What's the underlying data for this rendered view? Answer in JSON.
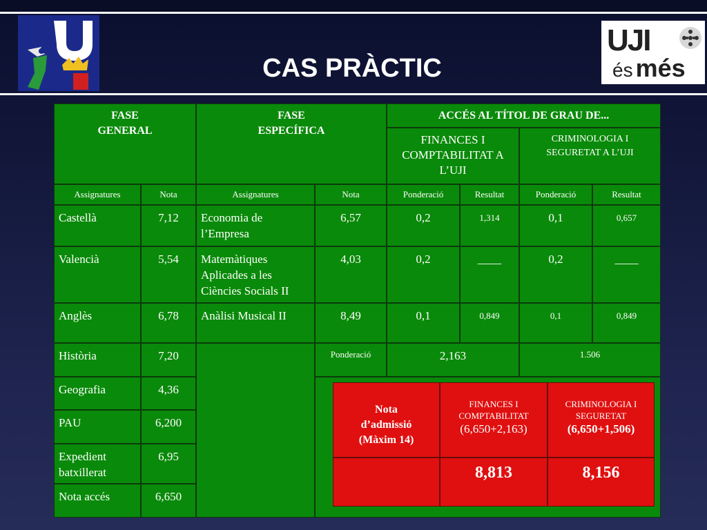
{
  "title": "CAS PRÀCTIC",
  "logo_right": {
    "line1": "UJI",
    "line2_a": "és",
    "line2_b": "més"
  },
  "headers": {
    "fase_general": "FASE\nGENERAL",
    "fase_especifica": "FASE\nESPECÍFICA",
    "acces": "ACCÉS AL TÍTOL DE GRAU DE...",
    "finances": "FINANCES I COMPTABILITAT A L’UJI",
    "criminologia": "CRIMINOLOGIA I SEGURETAT A L’UJI"
  },
  "subheaders": {
    "assignatures1": "Assignatures",
    "nota1": "Nota",
    "assignatures2": "Assignatures",
    "nota2": "Nota",
    "ponderacio1": "Ponderació",
    "resultat1": "Resultat",
    "ponderacio2": "Ponderació",
    "resultat2": "Resultat"
  },
  "general": [
    {
      "subject": "Castellà",
      "grade": "7,12"
    },
    {
      "subject": "Valencià",
      "grade": "5,54"
    },
    {
      "subject": "Anglès",
      "grade": "6,78"
    },
    {
      "subject": "Història",
      "grade": "7,20"
    },
    {
      "subject": "Geografia",
      "grade": "4,36"
    },
    {
      "subject": "PAU",
      "grade": "6,200"
    },
    {
      "subject": "Expedient batxillerat",
      "grade": "6,95"
    },
    {
      "subject": "Nota accés",
      "grade": "6,650"
    }
  ],
  "especifica": [
    {
      "subject": "Economia de l’Empresa",
      "grade": "6,57",
      "p1": "0,2",
      "r1": "1,314",
      "p2": "0,1",
      "r2": "0,657"
    },
    {
      "subject": "Matemàtiques Aplicades a les Ciències Socials II",
      "grade": "4,03",
      "p1": "0,2",
      "r1": "____",
      "p2": "0,2",
      "r2": "____"
    },
    {
      "subject": "Anàlisi Musical II",
      "grade": "8,49",
      "p1": "0,1",
      "r1": "0,849",
      "p2": "0,1",
      "r2": "0,849"
    }
  ],
  "ponderacio_total": {
    "label": "Ponderació",
    "finances": "2,163",
    "criminologia": "1.506"
  },
  "admissio": {
    "label": "Nota\nd’admissió\n(Màxim 14)",
    "finances_title": "FINANCES I COMPTABILITAT",
    "finances_formula": "(6,650+2,163)",
    "criminologia_title": "CRIMINOLOGIA I SEGURETAT",
    "criminologia_formula": "(6,650+1,506)",
    "finances_result": "8,813",
    "criminologia_result": "8,156"
  }
}
